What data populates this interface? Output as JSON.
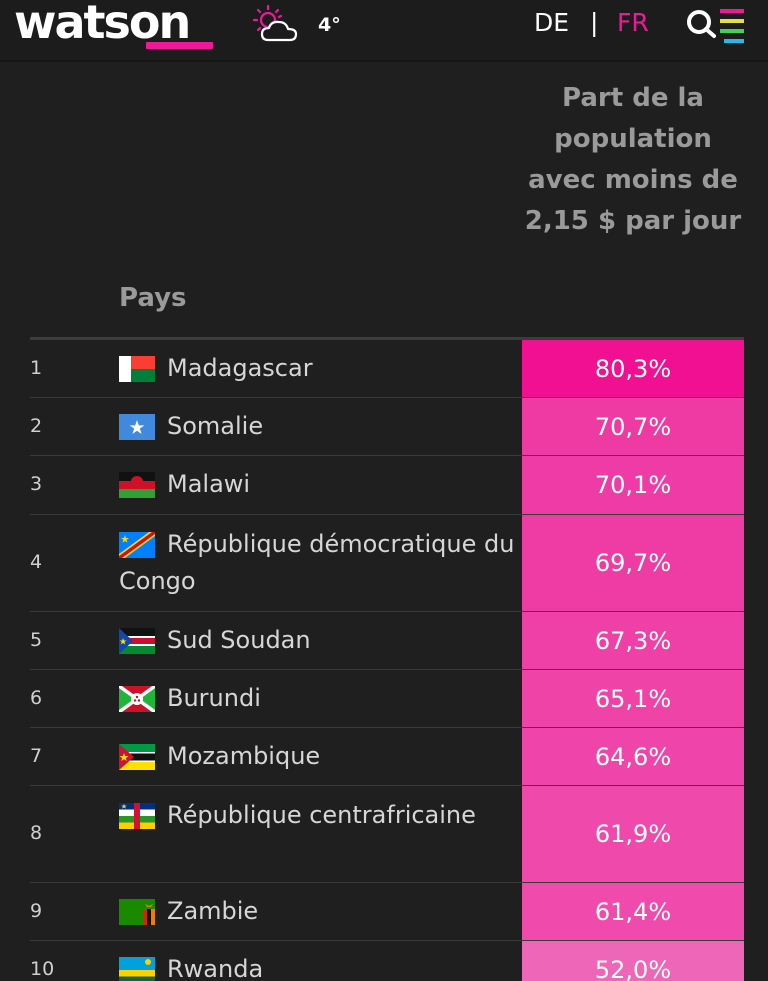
{
  "header": {
    "logo": "watson",
    "temperature": "4°",
    "lang_de": "DE",
    "lang_sep": "|",
    "lang_fr": "FR",
    "weather_icon": "partly-cloudy-icon",
    "menu_icon": "search-menu-icon",
    "accent_color": "#f0189a"
  },
  "table": {
    "col_country": "Pays",
    "col_share": "Part de la population avec moins de 2,15 $ par jour",
    "rows": [
      {
        "rank": "1",
        "country": "Madagascar",
        "value": "80,3%",
        "flag": "madagascar-flag-icon"
      },
      {
        "rank": "2",
        "country": "Somalie",
        "value": "70,7%",
        "flag": "somalia-flag-icon"
      },
      {
        "rank": "3",
        "country": "Malawi",
        "value": "70,1%",
        "flag": "malawi-flag-icon"
      },
      {
        "rank": "4",
        "country": "République démocratique du Congo",
        "value": "69,7%",
        "flag": "drc-flag-icon"
      },
      {
        "rank": "5",
        "country": "Sud Soudan",
        "value": "67,3%",
        "flag": "south-sudan-flag-icon"
      },
      {
        "rank": "6",
        "country": "Burundi",
        "value": "65,1%",
        "flag": "burundi-flag-icon"
      },
      {
        "rank": "7",
        "country": "Mozambique",
        "value": "64,6%",
        "flag": "mozambique-flag-icon"
      },
      {
        "rank": "8",
        "country": "République centrafricaine",
        "value": "61,9%",
        "flag": "car-flag-icon"
      },
      {
        "rank": "9",
        "country": "Zambie",
        "value": "61,4%",
        "flag": "zambia-flag-icon"
      },
      {
        "rank": "10",
        "country": "Rwanda",
        "value": "52,0%",
        "flag": "rwanda-flag-icon"
      }
    ]
  }
}
